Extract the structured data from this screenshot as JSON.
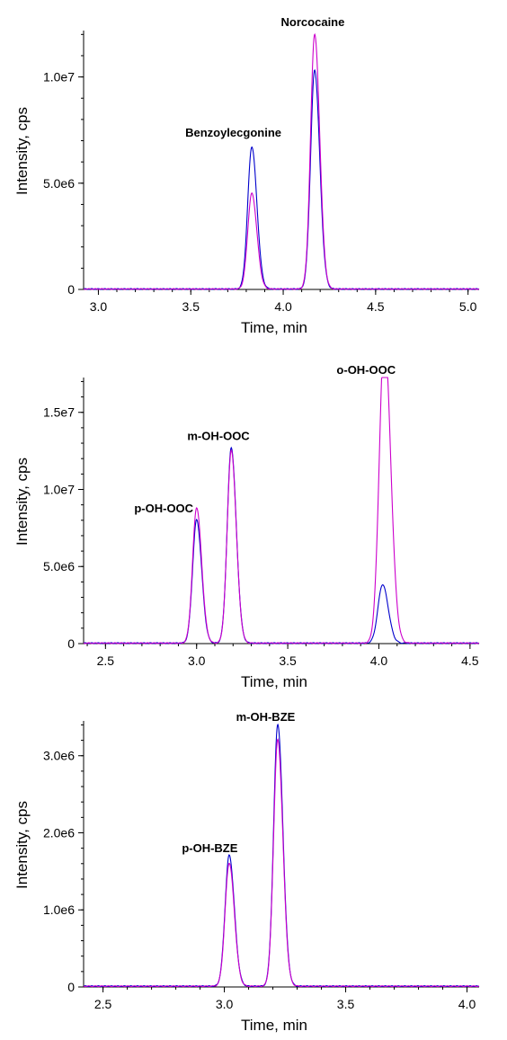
{
  "chart_data": [
    {
      "type": "line",
      "xlabel": "Time, min",
      "ylabel": "Intensity, cps",
      "xlim": [
        2.92,
        5.06
      ],
      "ylim": [
        0,
        12000000
      ],
      "x_ticks": [
        3.0,
        3.5,
        4.0,
        4.5,
        5.0
      ],
      "x_tick_labels": [
        "3.0",
        "3.5",
        "4.0",
        "4.5",
        "5.0"
      ],
      "y_ticks": [
        0,
        5000000,
        10000000
      ],
      "y_tick_labels": [
        "0",
        "5.0e6",
        "1.0e7"
      ],
      "grid": false,
      "series": [
        {
          "color": "#0000cc",
          "peaks": [
            {
              "rt": 3.83,
              "height": 6700000,
              "width": 0.022
            },
            {
              "rt": 4.17,
              "height": 10300000,
              "width": 0.022
            }
          ],
          "baseline": 20000
        },
        {
          "color": "#cc00cc",
          "peaks": [
            {
              "rt": 3.83,
              "height": 4500000,
              "width": 0.022
            },
            {
              "rt": 4.17,
              "height": 12000000,
              "width": 0.022
            }
          ],
          "baseline": 20000
        }
      ],
      "annotations": [
        {
          "text": "Benzoylecgonine",
          "x": 3.73,
          "y": 7200000
        },
        {
          "text": "Norcocaine",
          "x": 4.16,
          "y": 12400000
        }
      ]
    },
    {
      "type": "line",
      "xlabel": "Time, min",
      "ylabel": "Intensity, cps",
      "xlim": [
        2.38,
        4.55
      ],
      "ylim": [
        0,
        17000000
      ],
      "x_ticks": [
        2.5,
        3.0,
        3.5,
        4.0,
        4.5
      ],
      "x_tick_labels": [
        "2.5",
        "3.0",
        "3.5",
        "4.0",
        "4.5"
      ],
      "y_ticks": [
        0,
        5000000,
        10000000,
        15000000
      ],
      "y_tick_labels": [
        "0",
        "5.0e6",
        "1.0e7",
        "1.5e7"
      ],
      "grid": false,
      "series": [
        {
          "color": "#0000cc",
          "peaks": [
            {
              "rt": 3.0,
              "height": 8000000,
              "width": 0.022
            },
            {
              "rt": 3.19,
              "height": 12700000,
              "width": 0.022
            },
            {
              "rt": 4.02,
              "height": 3800000,
              "width": 0.025
            }
          ],
          "baseline": 30000
        },
        {
          "color": "#cc00cc",
          "peaks": [
            {
              "rt": 3.0,
              "height": 7500000,
              "width": 0.022
            },
            {
              "rt": 3.0,
              "height": 1300000,
              "width": 0.022
            },
            {
              "rt": 3.19,
              "height": 12500000,
              "width": 0.022
            },
            {
              "rt": 4.03,
              "height": 17000000,
              "width": 0.028
            },
            {
              "rt": 4.03,
              "height": 3000000,
              "width": 0.025
            }
          ],
          "baseline": 30000
        }
      ],
      "annotations": [
        {
          "text": "p-OH-OOC",
          "x": 2.82,
          "y": 8500000
        },
        {
          "text": "m-OH-OOC",
          "x": 3.12,
          "y": 13200000
        },
        {
          "text": "o-OH-OOC",
          "x": 3.93,
          "y": 17500000
        }
      ]
    },
    {
      "type": "line",
      "xlabel": "Time, min",
      "ylabel": "Intensity, cps",
      "xlim": [
        2.42,
        4.05
      ],
      "ylim": [
        0,
        3400000
      ],
      "x_ticks": [
        2.5,
        3.0,
        3.5,
        4.0
      ],
      "x_tick_labels": [
        "2.5",
        "3.0",
        "3.5",
        "4.0"
      ],
      "y_ticks": [
        0,
        1000000,
        2000000,
        3000000
      ],
      "y_tick_labels": [
        "0",
        "1.0e6",
        "2.0e6",
        "3.0e6"
      ],
      "grid": false,
      "series": [
        {
          "color": "#0000cc",
          "peaks": [
            {
              "rt": 3.02,
              "height": 1700000,
              "width": 0.017
            },
            {
              "rt": 3.22,
              "height": 3400000,
              "width": 0.017
            }
          ],
          "baseline": 10000
        },
        {
          "color": "#cc00cc",
          "peaks": [
            {
              "rt": 3.02,
              "height": 1600000,
              "width": 0.017
            },
            {
              "rt": 3.22,
              "height": 3200000,
              "width": 0.017
            }
          ],
          "baseline": 10000
        }
      ],
      "annotations": [
        {
          "text": "p-OH-BZE",
          "x": 2.94,
          "y": 1750000
        },
        {
          "text": "m-OH-BZE",
          "x": 3.17,
          "y": 3450000
        }
      ]
    }
  ]
}
